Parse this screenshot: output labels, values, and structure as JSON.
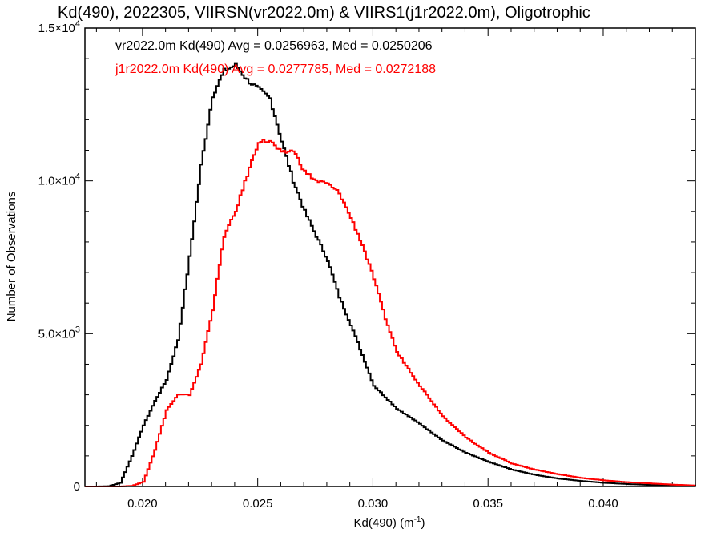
{
  "chart_data": {
    "type": "line",
    "title": "Kd(490), 2022305, VIIRSN(vr2022.0m) & VIIRS1(j1r2022.0m), Oligotrophic",
    "xlabel_main": "Kd(490) (m",
    "xlabel_sup": "-1",
    "xlabel_close": ")",
    "ylabel": "Number of Observations",
    "xlim": [
      0.0175,
      0.044
    ],
    "ylim": [
      0,
      15000
    ],
    "xticks": [
      {
        "value": 0.02,
        "label": "0.020"
      },
      {
        "value": 0.025,
        "label": "0.025"
      },
      {
        "value": 0.03,
        "label": "0.030"
      },
      {
        "value": 0.035,
        "label": "0.035"
      },
      {
        "value": 0.04,
        "label": "0.040"
      }
    ],
    "yticks": [
      {
        "value": 0,
        "mantissa": "0",
        "exponent": ""
      },
      {
        "value": 5000,
        "mantissa": "5.0×10",
        "exponent": "3"
      },
      {
        "value": 10000,
        "mantissa": "1.0×10",
        "exponent": "4"
      },
      {
        "value": 15000,
        "mantissa": "1.5×10",
        "exponent": "4"
      }
    ],
    "grid": false,
    "legend_position": "top-left",
    "series": [
      {
        "name": "vr2022.0m",
        "color": "#000000",
        "stats_text": "vr2022.0m Kd(490) Avg = 0.0256963, Med = 0.0250206",
        "x": [
          0.0175,
          0.018,
          0.0185,
          0.019,
          0.0195,
          0.02,
          0.0205,
          0.021,
          0.0215,
          0.022,
          0.0225,
          0.023,
          0.0235,
          0.024,
          0.0245,
          0.025,
          0.0255,
          0.026,
          0.0265,
          0.027,
          0.0275,
          0.028,
          0.0285,
          0.029,
          0.0295,
          0.03,
          0.031,
          0.032,
          0.033,
          0.034,
          0.035,
          0.036,
          0.037,
          0.038,
          0.039,
          0.04,
          0.041,
          0.042,
          0.043,
          0.044
        ],
        "y": [
          0,
          0,
          10,
          120,
          1000,
          2000,
          2800,
          3500,
          4800,
          7500,
          10500,
          12800,
          13600,
          13800,
          13300,
          13000,
          12700,
          11300,
          10000,
          9000,
          8200,
          7400,
          6200,
          5300,
          4300,
          3300,
          2550,
          2050,
          1500,
          1100,
          800,
          550,
          380,
          260,
          180,
          120,
          80,
          50,
          30,
          15
        ]
      },
      {
        "name": "j1r2022.0m",
        "color": "#ff0000",
        "stats_text": "j1r2022.0m Kd(490) Avg = 0.0277785, Med = 0.0272188",
        "x": [
          0.0175,
          0.018,
          0.0185,
          0.019,
          0.0195,
          0.02,
          0.0205,
          0.021,
          0.0215,
          0.022,
          0.0225,
          0.023,
          0.0235,
          0.024,
          0.0245,
          0.025,
          0.0255,
          0.026,
          0.0265,
          0.027,
          0.0275,
          0.028,
          0.0285,
          0.029,
          0.0295,
          0.03,
          0.0305,
          0.031,
          0.032,
          0.033,
          0.034,
          0.035,
          0.036,
          0.037,
          0.038,
          0.039,
          0.04,
          0.041,
          0.042,
          0.043,
          0.044
        ],
        "y": [
          0,
          0,
          0,
          0,
          20,
          150,
          1200,
          2500,
          3000,
          3000,
          4000,
          5800,
          8200,
          9000,
          10200,
          11300,
          11300,
          10900,
          11000,
          10300,
          10000,
          9900,
          9600,
          8800,
          7900,
          6800,
          5500,
          4400,
          3300,
          2300,
          1600,
          1100,
          750,
          550,
          400,
          280,
          200,
          140,
          100,
          60,
          30
        ]
      }
    ]
  }
}
